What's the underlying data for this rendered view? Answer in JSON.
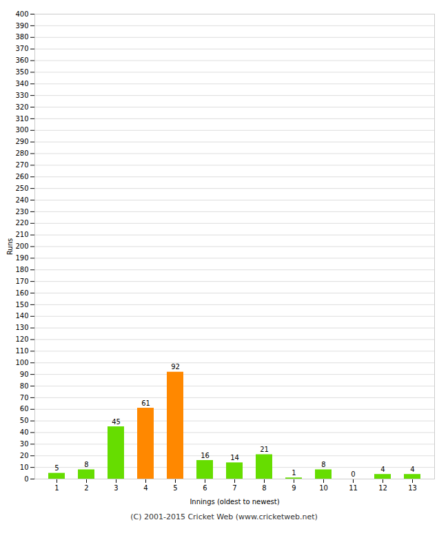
{
  "chart_data": {
    "type": "bar",
    "xlabel": "Innings (oldest to newest)",
    "ylabel": "Runs",
    "categories": [
      1,
      2,
      3,
      4,
      5,
      6,
      7,
      8,
      9,
      10,
      11,
      12,
      13
    ],
    "values": [
      5,
      8,
      45,
      61,
      92,
      16,
      14,
      21,
      1,
      8,
      0,
      4,
      4
    ],
    "colors": [
      "#66dd00",
      "#66dd00",
      "#66dd00",
      "#ff8800",
      "#ff8800",
      "#66dd00",
      "#66dd00",
      "#66dd00",
      "#66dd00",
      "#66dd00",
      "#66dd00",
      "#66dd00",
      "#66dd00"
    ],
    "ylim": [
      0,
      400
    ],
    "yticks": [
      0,
      10,
      20,
      30,
      40,
      50,
      60,
      70,
      80,
      90,
      100,
      110,
      120,
      130,
      140,
      150,
      160,
      170,
      180,
      190,
      200,
      210,
      220,
      230,
      240,
      250,
      260,
      270,
      280,
      290,
      300,
      310,
      320,
      330,
      340,
      350,
      360,
      370,
      380,
      390,
      400
    ],
    "grid": true,
    "data_labels": true,
    "caption": "(C) 2001-2015 Cricket Web (www.cricketweb.net)"
  }
}
